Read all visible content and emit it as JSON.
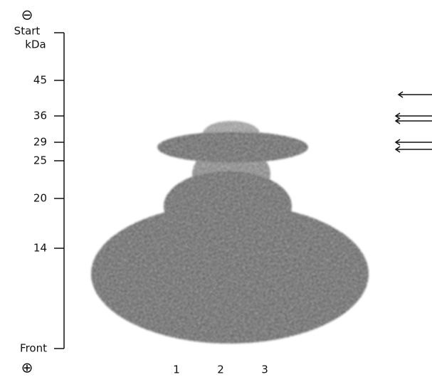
{
  "polarity": {
    "top": "⊖",
    "bottom": "⊕"
  },
  "axis": {
    "start": "Start",
    "unit": "kDa",
    "markers": [
      "45",
      "36",
      "29",
      "25",
      "20",
      "14"
    ],
    "end": "Front"
  },
  "lanes": [
    "1",
    "2",
    "3"
  ]
}
